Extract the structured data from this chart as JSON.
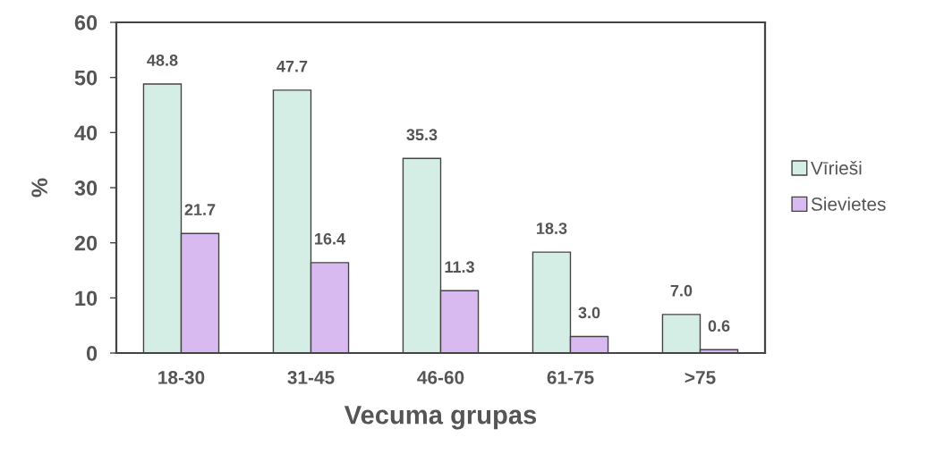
{
  "chart_data": {
    "type": "bar",
    "xlabel": "Vecuma grupas",
    "ylabel": "%",
    "categories": [
      "18-30",
      "31-45",
      "46-60",
      "61-75",
      ">75"
    ],
    "series": [
      {
        "name": "Vīrieši",
        "color": "#d5eee5",
        "values": [
          48.8,
          47.7,
          35.3,
          18.3,
          7.0
        ],
        "value_labels": [
          "48.8",
          "47.7",
          "35.3",
          "18.3",
          "7.0"
        ]
      },
      {
        "name": "Sievietes",
        "color": "#d9baf0",
        "values": [
          21.7,
          16.4,
          11.3,
          3.0,
          0.6
        ],
        "value_labels": [
          "21.7",
          "16.4",
          "11.3",
          "3.0",
          "0.6"
        ]
      }
    ],
    "ylim": [
      0,
      60
    ],
    "yticks": [
      0,
      10,
      20,
      30,
      40,
      50,
      60
    ],
    "grid": false,
    "legend": "right"
  }
}
